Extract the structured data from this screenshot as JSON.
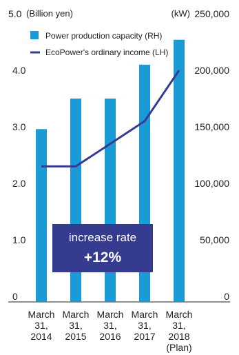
{
  "chart_data": {
    "type": "bar",
    "categories": [
      [
        "March",
        "31,",
        "2014"
      ],
      [
        "March",
        "31,",
        "2015"
      ],
      [
        "March",
        "31,",
        "2016"
      ],
      [
        "March",
        "31,",
        "2017"
      ],
      [
        "March",
        "31,",
        "2018",
        "(Plan)"
      ]
    ],
    "series": [
      {
        "name": "Power production capacity (RH)",
        "type": "bar",
        "axis": "right",
        "color": "#1a9ad6",
        "values": [
          148000,
          175000,
          175000,
          205000,
          227000
        ]
      },
      {
        "name": "EcoPower's ordinary income (LH)",
        "type": "line",
        "axis": "left",
        "color": "#353b8f",
        "values": [
          2.3,
          2.3,
          2.7,
          3.1,
          4.0
        ]
      }
    ],
    "left_axis": {
      "unit": "(Billion yen)",
      "ylim": [
        0,
        5.0
      ],
      "ticks": [
        "0",
        "1.0",
        "2.0",
        "3.0",
        "4.0",
        "5.0"
      ]
    },
    "right_axis": {
      "unit": "(kW)",
      "ylim": [
        0,
        250000
      ],
      "ticks": [
        "0",
        "50,000",
        "100,000",
        "150,000",
        "200,000",
        "250,000"
      ]
    },
    "legend": {
      "placement": "top-left"
    },
    "grid": false,
    "annotation": {
      "label": "increase rate",
      "value": "+12%",
      "color": "#353b8f"
    }
  }
}
